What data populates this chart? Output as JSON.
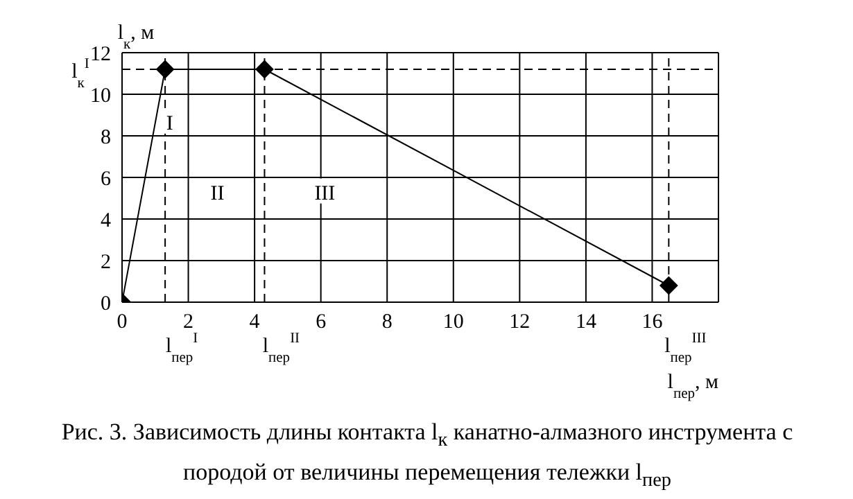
{
  "chart_data": {
    "type": "line",
    "title": "Рис. 3. Зависимость длины контакта l$_{к}$ канатно-алмазного инструмента с породой от величины перемещения тележки l$_{пер}$",
    "xlabel": "l$_{пер}$, м",
    "ylabel": "l$_{к}$, м",
    "x": [
      0,
      1.3,
      4.3,
      16.5
    ],
    "series": [
      {
        "color": "#000000",
        "values": [
          0,
          11.2,
          11.2,
          0.8
        ]
      }
    ],
    "xlim": [
      0,
      18
    ],
    "xticks": [
      0,
      2,
      4,
      6,
      8,
      10,
      12,
      14,
      16
    ],
    "ylim": [
      0,
      12
    ],
    "yticks": [
      0,
      2,
      4,
      6,
      8,
      10,
      12
    ],
    "grid": true,
    "legend": false,
    "marker": "diamond",
    "line_style": "solid",
    "ref_lines": [
      {
        "axis": "y",
        "value": 11.2,
        "label": "l$_{к}$$^{I}$",
        "line_style": "dashed"
      },
      {
        "axis": "x",
        "value": 1.3,
        "label": "l$_{пер}$$^{I}$",
        "line_style": "dashed"
      },
      {
        "axis": "x",
        "value": 4.3,
        "label": "l$_{пер}$$^{II}$",
        "line_style": "dashed"
      },
      {
        "axis": "x",
        "value": 16.5,
        "label": "l$_{пер}$$^{III}$",
        "line_style": "dashed"
      }
    ],
    "annotations": [
      "I",
      "II",
      "III"
    ]
  }
}
